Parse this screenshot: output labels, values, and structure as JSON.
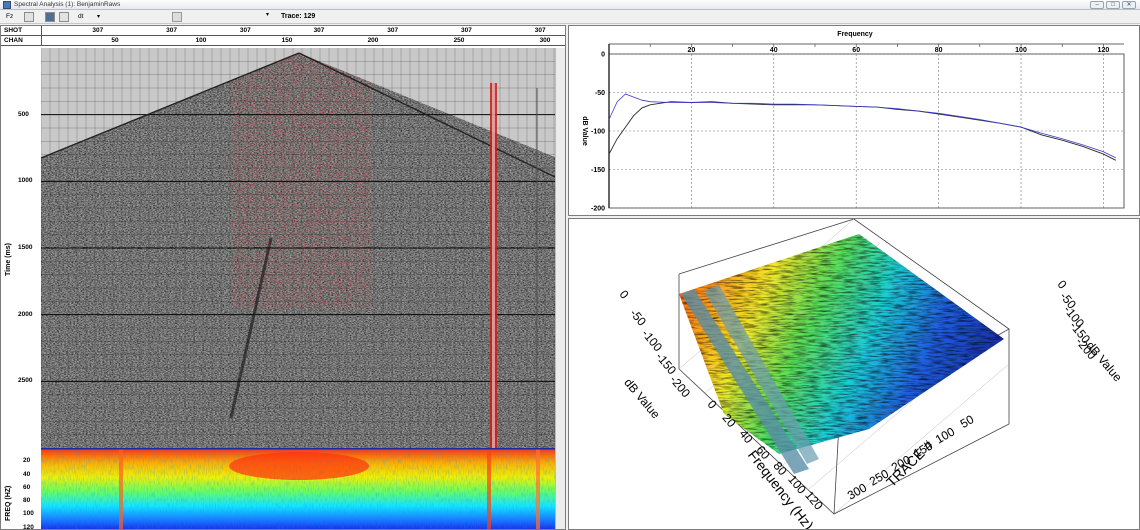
{
  "window": {
    "title": "Spectral Analysis (1): BenjaminRaws"
  },
  "toolbar": {
    "fz_label": "Fz",
    "dt_label": "dt",
    "trace_label": "Trace: 129"
  },
  "seismic": {
    "shot_label": "SHOT",
    "chan_label": "CHAN",
    "shot_values": [
      "307",
      "307",
      "307",
      "307",
      "307",
      "307",
      "307"
    ],
    "chan_values": [
      "50",
      "100",
      "150",
      "200",
      "250",
      "300"
    ],
    "time_ticks": [
      "500",
      "1000",
      "1500",
      "2000",
      "2500"
    ],
    "time_axis_title": "Time (ms)",
    "freq_ticks": [
      "20",
      "40",
      "60",
      "80",
      "100",
      "120"
    ],
    "freq_axis_title": "FREQ (HZ)"
  },
  "chart_data": [
    {
      "type": "line",
      "title": "Frequency",
      "xlabel": "",
      "ylabel": "dB Value",
      "xlim": [
        0,
        125
      ],
      "ylim": [
        -200,
        0
      ],
      "x_ticks": [
        "20",
        "40",
        "60",
        "80",
        "100",
        "120"
      ],
      "y_ticks": [
        "0",
        "-50",
        "-100",
        "-150",
        "-200"
      ],
      "series": [
        {
          "color": "#2a2a2a",
          "x": [
            0,
            2,
            4,
            6,
            8,
            10,
            15,
            20,
            25,
            30,
            35,
            40,
            45,
            50,
            55,
            60,
            65,
            70,
            75,
            80,
            85,
            90,
            95,
            100,
            105,
            110,
            115,
            120,
            123
          ],
          "y": [
            -130,
            -110,
            -95,
            -80,
            -70,
            -66,
            -62,
            -63,
            -62,
            -64,
            -65,
            -66,
            -66,
            -66,
            -67,
            -68,
            -69,
            -72,
            -74,
            -78,
            -82,
            -86,
            -90,
            -95,
            -105,
            -112,
            -120,
            -130,
            -138
          ]
        },
        {
          "color": "#3b3bd6",
          "x": [
            0,
            2,
            4,
            6,
            8,
            10,
            15,
            20,
            25,
            30,
            35,
            40,
            45,
            50,
            55,
            60,
            65,
            70,
            75,
            80,
            85,
            90,
            95,
            100,
            105,
            110,
            115,
            120,
            123
          ],
          "y": [
            -85,
            -62,
            -52,
            -56,
            -60,
            -62,
            -63,
            -63,
            -63,
            -64,
            -64,
            -65,
            -65,
            -66,
            -67,
            -68,
            -69,
            -71,
            -74,
            -77,
            -81,
            -85,
            -90,
            -95,
            -103,
            -110,
            -118,
            -127,
            -135
          ]
        }
      ]
    },
    {
      "type": "heatmap",
      "title": "",
      "xlabel": "Frequency (Hz)",
      "ylabel": "TRACE #",
      "zlabel": "dB Value",
      "x_ticks": [
        "0",
        "20",
        "40",
        "60",
        "80",
        "100",
        "120"
      ],
      "y_ticks": [
        "50",
        "100",
        "150",
        "200",
        "250",
        "300"
      ],
      "z_ticks": [
        "0",
        "-50",
        "-100",
        "-150",
        "-200"
      ]
    }
  ]
}
